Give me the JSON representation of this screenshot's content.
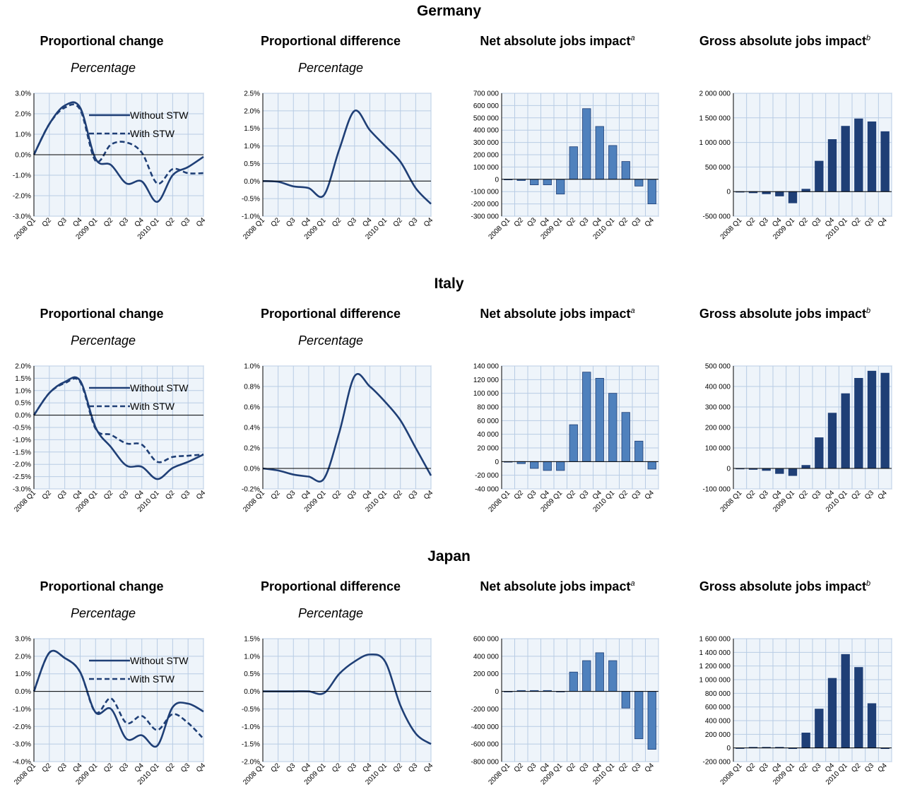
{
  "quarters": [
    "2008 Q1",
    "Q2",
    "Q3",
    "Q4",
    "2009 Q1",
    "Q2",
    "Q3",
    "Q4",
    "2010 Q1",
    "Q2",
    "Q3",
    "Q4"
  ],
  "legend": {
    "without": "Without STW",
    "with": "With STW"
  },
  "titles": {
    "prop_change": "Proportional change",
    "prop_diff": "Proportional difference",
    "net": "Net absolute jobs impact",
    "net_note": "a",
    "gross": "Gross absolute jobs impact",
    "gross_note": "b",
    "sub": "Percentage"
  },
  "colors": {
    "line": "#1f3f76",
    "net_bar": "#4f81bd",
    "gross_bar": "#1f3f76",
    "grid": "#b8cce4",
    "bg": "#eef4fa"
  },
  "chart_data": [
    {
      "country": "Germany",
      "id": "germany",
      "panels": [
        {
          "type": "line",
          "title": "Proportional change",
          "ylim": [
            -3,
            3
          ],
          "yticks": [
            "-3.0%",
            "-2.0%",
            "-1.0%",
            "0.0%",
            "1.0%",
            "2.0%",
            "3.0%"
          ],
          "series": [
            {
              "name": "Without STW",
              "style": "solid",
              "values": [
                0,
                1.5,
                2.4,
                2.3,
                -0.2,
                -0.5,
                -1.4,
                -1.3,
                -2.3,
                -1.0,
                -0.6,
                -0.1
              ]
            },
            {
              "name": "With STW",
              "style": "dashed",
              "values": [
                0,
                1.5,
                2.3,
                2.2,
                -0.3,
                0.5,
                0.6,
                0.1,
                -1.4,
                -0.7,
                -0.9,
                -0.9
              ]
            }
          ]
        },
        {
          "type": "line",
          "title": "Proportional difference",
          "ylim": [
            -1,
            2.5
          ],
          "yticks": [
            "-1.0%",
            "-0.5%",
            "0.0%",
            "0.5%",
            "1.0%",
            "1.5%",
            "2.0%",
            "2.5%"
          ],
          "series": [
            {
              "name": "",
              "style": "solid",
              "values": [
                0,
                -0.02,
                -0.15,
                -0.2,
                -0.4,
                0.9,
                2.0,
                1.45,
                1.0,
                0.55,
                -0.2,
                -0.65
              ]
            }
          ]
        },
        {
          "type": "bar",
          "title": "Net absolute jobs impact",
          "ylim": [
            -300000,
            700000
          ],
          "yticks": [
            "-300 000",
            "-200 000",
            "-100 000",
            "0",
            "100 000",
            "200 000",
            "300 000",
            "400 000",
            "500 000",
            "600 000",
            "700 000"
          ],
          "values": [
            0,
            -10000,
            -45000,
            -45000,
            -120000,
            265000,
            575000,
            430000,
            275000,
            145000,
            -55000,
            -200000
          ]
        },
        {
          "type": "bar",
          "title": "Gross absolute jobs impact",
          "ylim": [
            -500000,
            2000000
          ],
          "yticks": [
            "-500 000",
            "0",
            "500 000",
            "1 000 000",
            "1 500 000",
            "2 000 000"
          ],
          "values": [
            0,
            -25000,
            -45000,
            -90000,
            -230000,
            50000,
            620000,
            1060000,
            1330000,
            1480000,
            1420000,
            1220000
          ]
        }
      ]
    },
    {
      "country": "Italy",
      "id": "italy",
      "panels": [
        {
          "type": "line",
          "title": "Proportional change",
          "ylim": [
            -3,
            2
          ],
          "yticks": [
            "-3.0%",
            "-2.5%",
            "-2.0%",
            "-1.5%",
            "-1.0%",
            "-0.5%",
            "0.0%",
            "0.5%",
            "1.0%",
            "1.5%",
            "2.0%"
          ],
          "series": [
            {
              "name": "Without STW",
              "style": "solid",
              "values": [
                0,
                0.9,
                1.35,
                1.4,
                -0.5,
                -1.3,
                -2.05,
                -2.1,
                -2.6,
                -2.15,
                -1.9,
                -1.6
              ]
            },
            {
              "name": "With STW",
              "style": "dashed",
              "values": [
                0,
                0.9,
                1.3,
                1.35,
                -0.55,
                -0.8,
                -1.15,
                -1.2,
                -1.9,
                -1.7,
                -1.65,
                -1.6
              ]
            }
          ]
        },
        {
          "type": "line",
          "title": "Proportional difference",
          "ylim": [
            -0.2,
            1.0
          ],
          "yticks": [
            "-0.2%",
            "0.0%",
            "0.2%",
            "0.4%",
            "0.6%",
            "0.8%",
            "1.0%"
          ],
          "series": [
            {
              "name": "",
              "style": "solid",
              "values": [
                0,
                -0.02,
                -0.06,
                -0.08,
                -0.1,
                0.35,
                0.9,
                0.8,
                0.65,
                0.47,
                0.2,
                -0.07
              ]
            }
          ]
        },
        {
          "type": "bar",
          "title": "Net absolute jobs impact",
          "ylim": [
            -40000,
            140000
          ],
          "yticks": [
            "-40 000",
            "-20 000",
            "0",
            "20 000",
            "40 000",
            "60 000",
            "80 000",
            "100 000",
            "120 000",
            "140 000"
          ],
          "values": [
            0,
            -3000,
            -10000,
            -13000,
            -13000,
            54000,
            131000,
            122000,
            100000,
            72000,
            30000,
            -11000
          ]
        },
        {
          "type": "bar",
          "title": "Gross absolute jobs impact",
          "ylim": [
            -100000,
            500000
          ],
          "yticks": [
            "-100 000",
            "0",
            "100 000",
            "200 000",
            "300 000",
            "400 000",
            "500 000"
          ],
          "values": [
            0,
            -5000,
            -10000,
            -25000,
            -35000,
            15000,
            150000,
            270000,
            365000,
            440000,
            475000,
            465000
          ]
        }
      ]
    },
    {
      "country": "Japan",
      "id": "japan",
      "panels": [
        {
          "type": "line",
          "title": "Proportional change",
          "ylim": [
            -4,
            3
          ],
          "yticks": [
            "-4.0%",
            "-3.0%",
            "-2.0%",
            "-1.0%",
            "0.0%",
            "1.0%",
            "2.0%",
            "3.0%"
          ],
          "series": [
            {
              "name": "Without STW",
              "style": "solid",
              "values": [
                0,
                2.2,
                1.9,
                1.1,
                -1.2,
                -1.0,
                -2.7,
                -2.5,
                -3.1,
                -0.9,
                -0.7,
                -1.15
              ]
            },
            {
              "name": "With STW",
              "style": "dashed",
              "values": [
                0,
                2.2,
                1.9,
                1.1,
                -1.2,
                -0.4,
                -1.8,
                -1.4,
                -2.2,
                -1.3,
                -1.8,
                -2.7
              ]
            }
          ]
        },
        {
          "type": "line",
          "title": "Proportional difference",
          "ylim": [
            -2,
            1.5
          ],
          "yticks": [
            "-2.0%",
            "-1.5%",
            "-1.0%",
            "-0.5%",
            "0.0%",
            "0.5%",
            "1.0%",
            "1.5%"
          ],
          "series": [
            {
              "name": "",
              "style": "solid",
              "values": [
                0,
                0,
                0,
                0,
                -0.05,
                0.5,
                0.85,
                1.05,
                0.85,
                -0.4,
                -1.2,
                -1.5
              ]
            }
          ]
        },
        {
          "type": "bar",
          "title": "Net absolute jobs impact",
          "ylim": [
            -800000,
            600000
          ],
          "yticks": [
            "-800 000",
            "-600 000",
            "-400 000",
            "-200 000",
            "0",
            "200 000",
            "400 000",
            "600 000"
          ],
          "values": [
            0,
            10000,
            10000,
            10000,
            -5000,
            220000,
            350000,
            440000,
            350000,
            -190000,
            -540000,
            -660000
          ]
        },
        {
          "type": "bar",
          "title": "Gross absolute jobs impact",
          "ylim": [
            -200000,
            1600000
          ],
          "yticks": [
            "-200 000",
            "0",
            "200 000",
            "400 000",
            "600 000",
            "800 000",
            "1 000 000",
            "1 200 000",
            "1 400 000",
            "1 600 000"
          ],
          "values": [
            0,
            10000,
            10000,
            10000,
            -10000,
            220000,
            570000,
            1020000,
            1370000,
            1180000,
            650000,
            -10000
          ]
        }
      ]
    }
  ]
}
